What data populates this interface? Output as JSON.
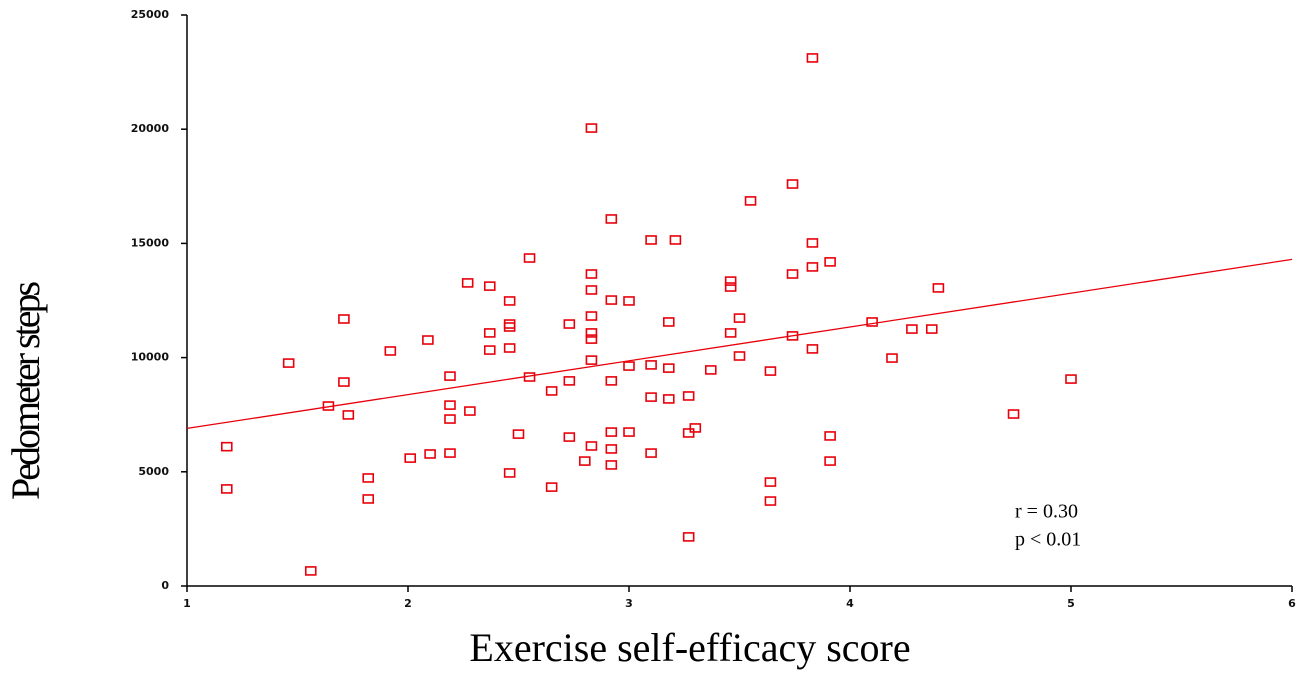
{
  "chart_data": {
    "type": "scatter",
    "x_label": "Exercise self-efficacy score",
    "y_label": "Pedometer steps",
    "annotations": [
      "r = 0.30",
      "p < 0.01"
    ],
    "color": "#e8000b",
    "xlim": [
      1,
      6
    ],
    "ylim": [
      0,
      25000
    ],
    "xticks": [
      1,
      2,
      3,
      4,
      5,
      6
    ],
    "yticks": [
      0,
      5000,
      10000,
      15000,
      20000,
      25000
    ],
    "x": [
      1.18,
      1.18,
      1.46,
      1.56,
      1.64,
      1.71,
      1.71,
      1.73,
      1.82,
      1.82,
      1.92,
      2.01,
      2.09,
      2.1,
      2.19,
      2.19,
      2.19,
      2.19,
      2.27,
      2.28,
      2.37,
      2.37,
      2.37,
      2.46,
      2.46,
      2.46,
      2.46,
      2.46,
      2.5,
      2.55,
      2.55,
      2.65,
      2.65,
      2.73,
      2.73,
      2.73,
      2.8,
      2.83,
      2.83,
      2.83,
      2.83,
      2.83,
      2.83,
      2.83,
      2.83,
      2.92,
      2.92,
      2.92,
      2.92,
      2.92,
      2.92,
      3.0,
      3.0,
      3.0,
      3.1,
      3.1,
      3.1,
      3.1,
      3.18,
      3.18,
      3.18,
      3.21,
      3.27,
      3.27,
      3.27,
      3.3,
      3.37,
      3.46,
      3.46,
      3.46,
      3.5,
      3.5,
      3.55,
      3.64,
      3.64,
      3.64,
      3.74,
      3.74,
      3.74,
      3.83,
      3.83,
      3.83,
      3.83,
      3.91,
      3.91,
      3.91,
      4.1,
      4.19,
      4.28,
      4.37,
      4.4,
      4.74,
      5.0
    ],
    "y": [
      6100,
      4250,
      9760,
      660,
      7880,
      11690,
      8930,
      7490,
      4730,
      3810,
      10290,
      5600,
      10770,
      5780,
      9190,
      7920,
      7310,
      5820,
      13270,
      7660,
      13130,
      11080,
      10330,
      12480,
      11470,
      11340,
      10420,
      4950,
      6650,
      14360,
      9150,
      8540,
      4330,
      11470,
      8980,
      6520,
      5470,
      20050,
      13660,
      12960,
      11820,
      11080,
      10810,
      9890,
      6130,
      16070,
      12520,
      8980,
      6740,
      6000,
      5300,
      12480,
      9630,
      6740,
      15150,
      9680,
      8270,
      5820,
      11560,
      9540,
      8190,
      15150,
      8320,
      6700,
      2150,
      6920,
      9460,
      13350,
      13090,
      11080,
      11730,
      10070,
      16860,
      9410,
      4550,
      3720,
      17600,
      13660,
      10950,
      23120,
      15020,
      13970,
      10380,
      14190,
      6570,
      5470,
      11560,
      9980,
      11250,
      11250,
      13050,
      7530,
      9060
    ],
    "fit_line": {
      "x": [
        1,
        6
      ],
      "y": [
        6900,
        14300
      ]
    }
  }
}
